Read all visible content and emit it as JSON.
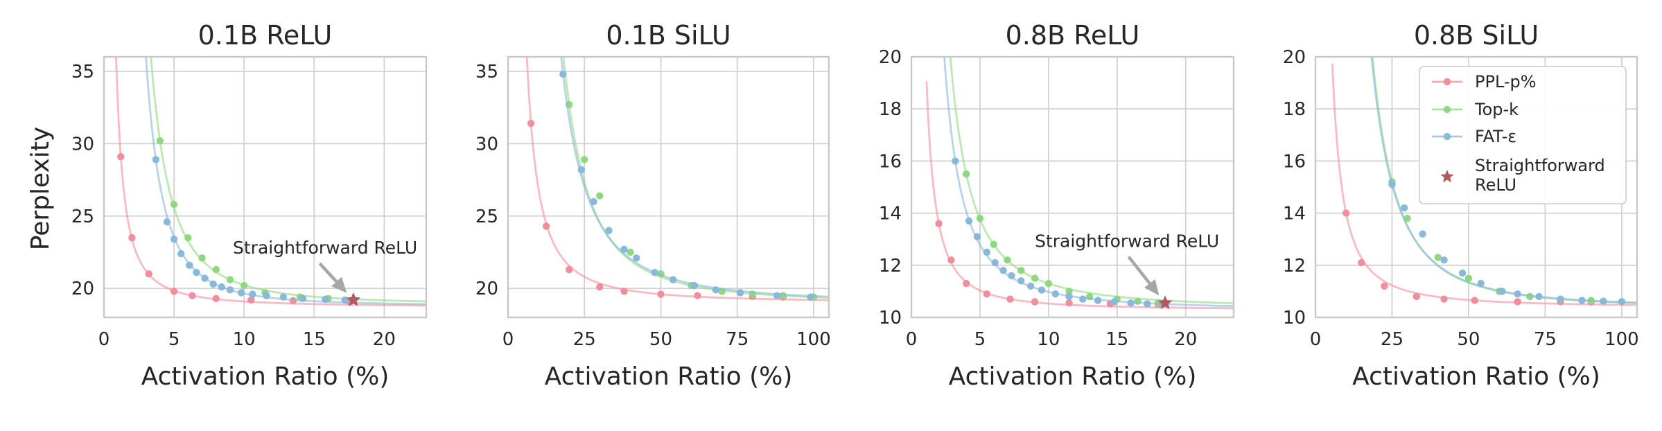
{
  "figure": {
    "ylabel": "Perplexity"
  },
  "legend": {
    "entries": [
      {
        "label": "PPL-p%",
        "color": "#f08e9c",
        "marker": "dot"
      },
      {
        "label": "Top-k",
        "color": "#8ed880",
        "marker": "dot"
      },
      {
        "label": "FAT-ε",
        "color": "#88b8da",
        "marker": "dot"
      },
      {
        "label": "Straightforward ReLU",
        "color": "#b05a60",
        "marker": "star"
      }
    ]
  },
  "chart_data": [
    {
      "type": "line",
      "title": "0.1B ReLU",
      "xlabel": "Activation Ratio (%)",
      "ylabel": "Perplexity",
      "xlim": [
        0,
        23
      ],
      "ylim": [
        18,
        36
      ],
      "xticks": [
        0,
        5,
        10,
        15,
        20
      ],
      "yticks": [
        20,
        25,
        30,
        35
      ],
      "grid": true,
      "series": [
        {
          "name": "PPL-p%",
          "color": "#f08e9c",
          "x": [
            1.2,
            2.0,
            3.2,
            5.0,
            6.3,
            8.0,
            10.5,
            13.5,
            17.5
          ],
          "y": [
            29.1,
            23.5,
            21.0,
            19.8,
            19.5,
            19.3,
            19.2,
            19.15,
            19.1
          ]
        },
        {
          "name": "Top-k",
          "color": "#8ed880",
          "x": [
            4.0,
            5.0,
            6.0,
            7.0,
            8.0,
            9.0,
            10.0,
            11.5,
            14.0,
            16.0
          ],
          "y": [
            30.2,
            25.8,
            23.5,
            22.1,
            21.3,
            20.6,
            20.2,
            19.7,
            19.4,
            19.3
          ]
        },
        {
          "name": "FAT-ε",
          "color": "#88b8da",
          "x": [
            3.7,
            4.5,
            5.0,
            5.5,
            6.1,
            6.6,
            7.2,
            7.8,
            8.4,
            9.0,
            9.8,
            10.6,
            11.6,
            12.8,
            14.2,
            15.8,
            17.2
          ],
          "y": [
            28.9,
            24.6,
            23.4,
            22.4,
            21.6,
            21.1,
            20.7,
            20.3,
            20.1,
            19.9,
            19.7,
            19.6,
            19.5,
            19.4,
            19.3,
            19.25,
            19.2
          ]
        }
      ],
      "marker": {
        "label": "Straightforward ReLU",
        "x": 17.8,
        "y": 19.2
      },
      "annotation": {
        "text": "Straightforward ReLU",
        "x": 9.2,
        "y": 22.4
      }
    },
    {
      "type": "line",
      "title": "0.1B SiLU",
      "xlabel": "Activation Ratio (%)",
      "xlim": [
        0,
        105
      ],
      "ylim": [
        18,
        36
      ],
      "xticks": [
        0,
        25,
        50,
        75,
        100
      ],
      "yticks": [
        20,
        25,
        30,
        35
      ],
      "grid": true,
      "series": [
        {
          "name": "PPL-p%",
          "color": "#f08e9c",
          "x": [
            7.5,
            12.5,
            20.0,
            30.0,
            38.0,
            50.0,
            62.0,
            80.0,
            90.0,
            100.0
          ],
          "y": [
            31.4,
            24.3,
            21.3,
            20.1,
            19.8,
            19.6,
            19.5,
            19.45,
            19.4,
            19.4
          ]
        },
        {
          "name": "Top-k",
          "color": "#8ed880",
          "x": [
            20.0,
            25.0,
            30.0,
            40.0,
            50.0,
            60.0,
            70.0,
            80.0,
            90.0,
            100.0
          ],
          "y": [
            32.7,
            28.9,
            26.4,
            22.5,
            21.0,
            20.2,
            19.8,
            19.6,
            19.5,
            19.4
          ]
        },
        {
          "name": "FAT-ε",
          "color": "#88b8da",
          "x": [
            18.0,
            24.0,
            28.0,
            33.0,
            38.0,
            42.0,
            48.0,
            54.0,
            61.0,
            68.0,
            76.0,
            88.0,
            99.0
          ],
          "y": [
            34.8,
            28.2,
            26.0,
            24.0,
            22.7,
            22.1,
            21.1,
            20.6,
            20.2,
            19.9,
            19.7,
            19.5,
            19.4
          ]
        }
      ]
    },
    {
      "type": "line",
      "title": "0.8B ReLU",
      "xlabel": "Activation Ratio (%)",
      "xlim": [
        0,
        23.5
      ],
      "ylim": [
        10,
        20
      ],
      "xticks": [
        0,
        5,
        10,
        15,
        20
      ],
      "yticks": [
        10,
        12,
        14,
        16,
        18,
        20
      ],
      "grid": true,
      "series": [
        {
          "name": "PPL-p%",
          "color": "#f08e9c",
          "x": [
            2.0,
            2.9,
            4.0,
            5.5,
            7.2,
            9.0,
            11.5,
            14.5,
            18.0
          ],
          "y": [
            13.6,
            12.2,
            11.3,
            10.9,
            10.7,
            10.6,
            10.55,
            10.52,
            10.5
          ]
        },
        {
          "name": "Top-k",
          "color": "#8ed880",
          "x": [
            4.0,
            5.0,
            6.0,
            7.0,
            8.0,
            9.0,
            10.0,
            11.5,
            13.0,
            15.0,
            16.5,
            18.0
          ],
          "y": [
            15.5,
            13.8,
            12.8,
            12.2,
            11.8,
            11.5,
            11.3,
            11.0,
            10.8,
            10.7,
            10.62,
            10.55
          ]
        },
        {
          "name": "FAT-ε",
          "color": "#88b8da",
          "x": [
            3.2,
            4.2,
            4.8,
            5.5,
            6.1,
            6.7,
            7.3,
            8.0,
            8.7,
            9.5,
            10.5,
            11.5,
            12.5,
            13.6,
            14.8,
            16.0,
            17.2,
            18.3
          ],
          "y": [
            16.0,
            13.7,
            13.1,
            12.5,
            12.1,
            11.8,
            11.6,
            11.4,
            11.2,
            11.05,
            10.9,
            10.8,
            10.7,
            10.65,
            10.6,
            10.55,
            10.52,
            10.5
          ]
        }
      ],
      "marker": {
        "label": "Straightforward ReLU",
        "x": 18.5,
        "y": 10.55
      },
      "annotation": {
        "text": "Straightforward ReLU",
        "x": 9.0,
        "y": 12.7
      }
    },
    {
      "type": "line",
      "title": "0.8B SiLU",
      "xlabel": "Activation Ratio (%)",
      "xlim": [
        0,
        105
      ],
      "ylim": [
        10,
        20
      ],
      "xticks": [
        0,
        25,
        50,
        75,
        100
      ],
      "yticks": [
        10,
        12,
        14,
        16,
        18,
        20
      ],
      "grid": true,
      "legend_position": "top-right",
      "series": [
        {
          "name": "PPL-p%",
          "color": "#f08e9c",
          "x": [
            10.0,
            15.0,
            22.5,
            33.0,
            42.0,
            52.0,
            66.0,
            80.0,
            90.0,
            100.0
          ],
          "y": [
            14.0,
            12.1,
            11.2,
            10.8,
            10.7,
            10.65,
            10.6,
            10.6,
            10.6,
            10.6
          ]
        },
        {
          "name": "Top-k",
          "color": "#8ed880",
          "x": [
            25.0,
            30.0,
            40.0,
            50.0,
            60.0,
            70.0,
            80.0,
            90.0,
            100.0
          ],
          "y": [
            15.2,
            13.8,
            12.3,
            11.5,
            11.0,
            10.8,
            10.7,
            10.65,
            10.6
          ]
        },
        {
          "name": "FAT-ε",
          "color": "#88b8da",
          "x": [
            25.0,
            29.0,
            35.0,
            42.0,
            48.0,
            54.0,
            61.0,
            66.0,
            73.0,
            80.0,
            87.0,
            94.0,
            100.0
          ],
          "y": [
            15.1,
            14.2,
            13.2,
            12.2,
            11.7,
            11.3,
            11.0,
            10.9,
            10.8,
            10.7,
            10.65,
            10.62,
            10.6
          ]
        }
      ]
    }
  ]
}
